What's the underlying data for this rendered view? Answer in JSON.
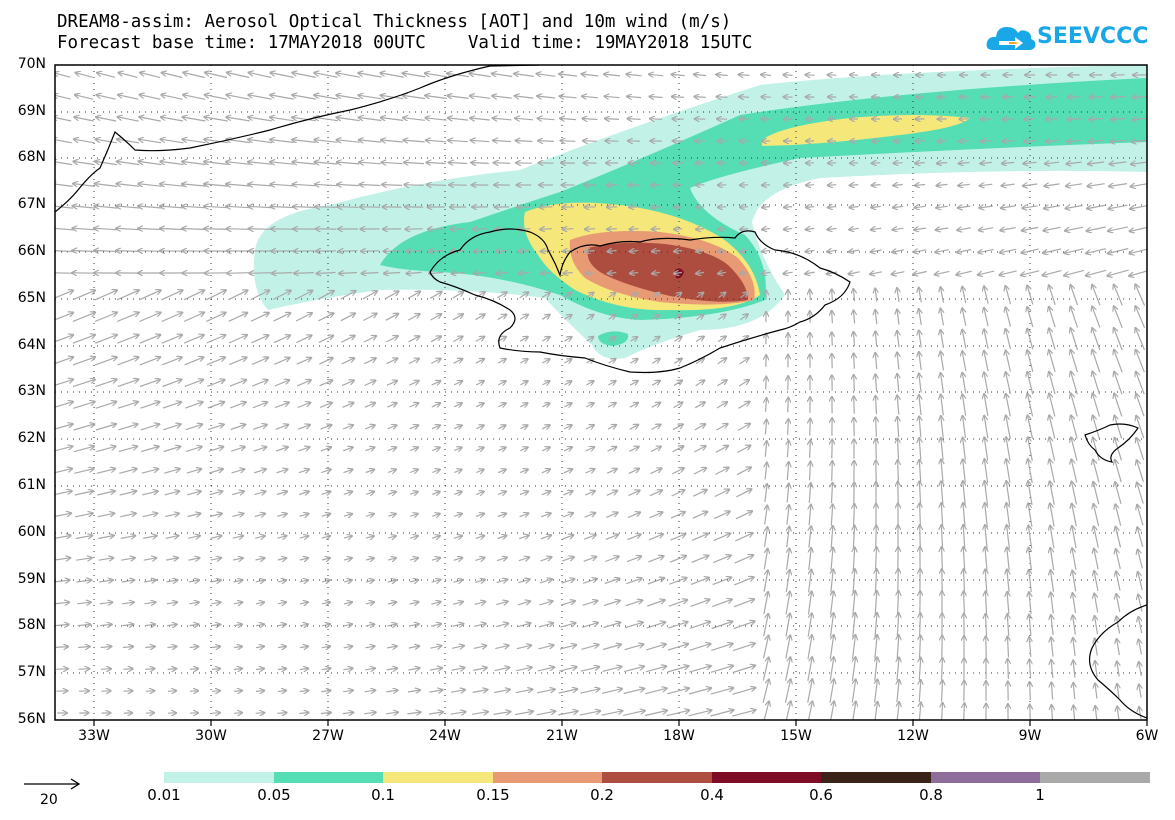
{
  "header": {
    "title_line1": "DREAM8-assim: Aerosol Optical Thickness [AOT] and 10m wind (m/s)",
    "title_line2": "Forecast base time: 17MAY2018 00UTC    Valid time: 19MAY2018 15UTC"
  },
  "logo": {
    "text": "SEEVCCC",
    "icon": "cloud-logo-icon",
    "color": "#1aa7e8"
  },
  "map": {
    "lon_range": [
      -34.5,
      -6
    ],
    "lat_range": [
      56,
      70
    ],
    "lat_labels": [
      "56N",
      "57N",
      "58N",
      "59N",
      "60N",
      "61N",
      "62N",
      "63N",
      "64N",
      "65N",
      "66N",
      "67N",
      "68N",
      "69N",
      "70N"
    ],
    "lon_labels": [
      "33W",
      "30W",
      "27W",
      "24W",
      "21W",
      "18W",
      "15W",
      "12W",
      "9W",
      "6W"
    ],
    "grid": "dotted"
  },
  "colorbar": {
    "labels": [
      "0.01",
      "0.05",
      "0.1",
      "0.15",
      "0.2",
      "0.4",
      "0.6",
      "0.8",
      "1"
    ],
    "colors": [
      "#c2f1e8",
      "#55ddb4",
      "#f5e77a",
      "#e89a74",
      "#ad4d40",
      "#7e0c24",
      "#3a2219",
      "#8e6d9b",
      "#a9a9a9"
    ]
  },
  "wind_reference": {
    "label": "20"
  }
}
